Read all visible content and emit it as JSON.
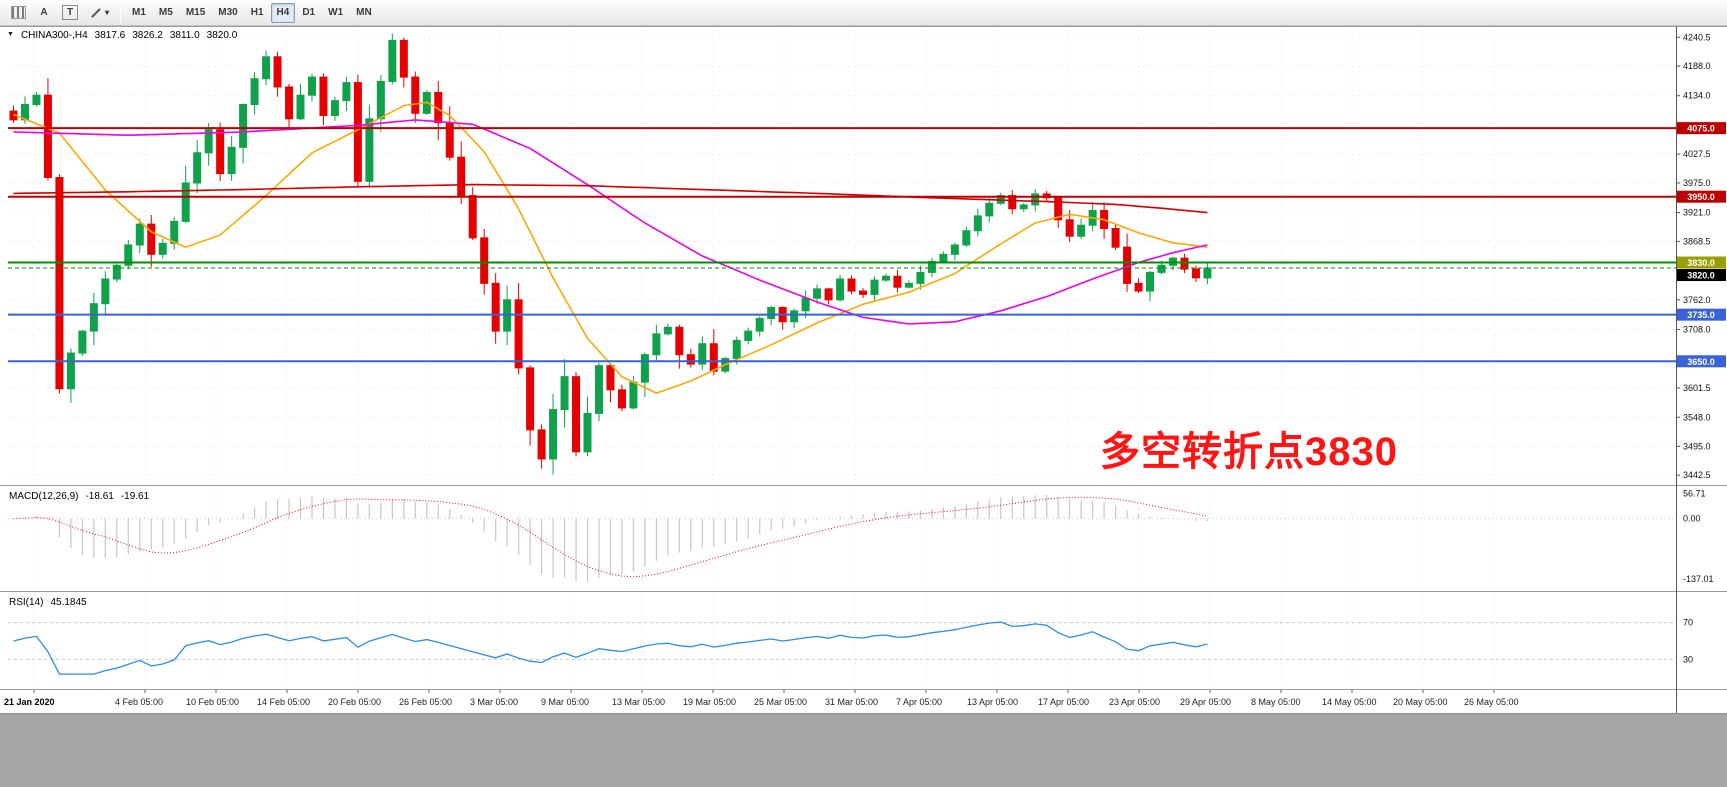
{
  "toolbar": {
    "tools": {
      "a": "A",
      "t": "T"
    },
    "timeframes": [
      "M1",
      "M5",
      "M15",
      "M30",
      "H1",
      "H4",
      "D1",
      "W1",
      "MN"
    ],
    "active_timeframe": "H4"
  },
  "chart_data": [
    {
      "type": "candlestick",
      "title": "CHINA300-,H4",
      "symbol": "CHINA300-",
      "timeframe": "H4",
      "open": "3817.6",
      "high": "3826.2",
      "low": "3811.0",
      "close": "3820.0",
      "y_range": [
        3430,
        4252
      ],
      "y_ticks": [
        4240.5,
        4188.0,
        4134.0,
        4027.5,
        3975.0,
        3921.0,
        3868.5,
        3762.0,
        3708.0,
        3601.5,
        3548.0,
        3495.0,
        3442.5
      ],
      "x_labels": [
        "21 Jan 2020",
        "4 Feb 05:00",
        "10 Feb 05:00",
        "14 Feb 05:00",
        "20 Feb 05:00",
        "26 Feb 05:00",
        "3 Mar 05:00",
        "9 Mar 05:00",
        "13 Mar 05:00",
        "19 Mar 05:00",
        "25 Mar 05:00",
        "31 Mar 05:00",
        "7 Apr 05:00",
        "13 Apr 05:00",
        "17 Apr 05:00",
        "23 Apr 05:00",
        "29 Apr 05:00",
        "8 May 05:00",
        "14 May 05:00",
        "20 May 05:00",
        "26 May 05:00"
      ],
      "closes": [
        4090,
        4118,
        4135,
        3985,
        3600,
        3665,
        3705,
        3755,
        3800,
        3825,
        3862,
        3900,
        3845,
        3865,
        3905,
        3975,
        4030,
        4072,
        3992,
        4040,
        4118,
        4165,
        4205,
        4150,
        4092,
        4135,
        4168,
        4098,
        4125,
        4158,
        3978,
        4092,
        4160,
        4235,
        4168,
        4102,
        4140,
        4085,
        4022,
        3952,
        3875,
        3792,
        3705,
        3762,
        3638,
        3525,
        3472,
        3562,
        3622,
        3485,
        3555,
        3642,
        3598,
        3565,
        3612,
        3662,
        3700,
        3712,
        3662,
        3645,
        3682,
        3632,
        3655,
        3688,
        3705,
        3728,
        3748,
        3722,
        3742,
        3765,
        3782,
        3762,
        3800,
        3778,
        3772,
        3798,
        3805,
        3785,
        3792,
        3812,
        3832,
        3845,
        3862,
        3888,
        3915,
        3938,
        3952,
        3928,
        3935,
        3955,
        3948,
        3908,
        3878,
        3898,
        3925,
        3892,
        3858,
        3792,
        3778,
        3812,
        3825,
        3838,
        3818,
        3802,
        3820
      ],
      "up_color": "#0fa24b",
      "down_color": "#e60000",
      "hlines": [
        {
          "price": 4075.0,
          "line_color": "#c00000",
          "badge_bg": "#c00000",
          "badge_fg": "#ffffff"
        },
        {
          "price": 3950.0,
          "line_color": "#c00000",
          "badge_bg": "#c00000",
          "badge_fg": "#ffffff"
        },
        {
          "price": 3830.0,
          "line_color": "#008f00",
          "badge_bg": "#97a000",
          "badge_fg": "#ffffff"
        },
        {
          "price": 3735.0,
          "line_color": "#3a62d8",
          "badge_bg": "#3a62d8",
          "badge_fg": "#ffffff"
        },
        {
          "price": 3650.0,
          "line_color": "#3a62d8",
          "badge_bg": "#3a62d8",
          "badge_fg": "#ffffff"
        }
      ],
      "bid": {
        "price": 3820.0,
        "line_color": "#008f00",
        "badge_bg": "#000000",
        "badge_fg": "#ffffff"
      },
      "moving_averages": [
        {
          "name": "fast",
          "color": "#ffa800",
          "waypoints": [
            [
              0,
              4100
            ],
            [
              4,
              4066
            ],
            [
              8,
              3962
            ],
            [
              12,
              3886
            ],
            [
              15,
              3858
            ],
            [
              18,
              3880
            ],
            [
              22,
              3952
            ],
            [
              26,
              4030
            ],
            [
              30,
              4072
            ],
            [
              34,
              4116
            ],
            [
              36,
              4122
            ],
            [
              38,
              4098
            ],
            [
              41,
              4032
            ],
            [
              44,
              3928
            ],
            [
              47,
              3802
            ],
            [
              50,
              3692
            ],
            [
              53,
              3622
            ],
            [
              56,
              3592
            ],
            [
              59,
              3614
            ],
            [
              62,
              3644
            ],
            [
              66,
              3680
            ],
            [
              70,
              3720
            ],
            [
              74,
              3754
            ],
            [
              78,
              3776
            ],
            [
              82,
              3810
            ],
            [
              86,
              3864
            ],
            [
              89,
              3902
            ],
            [
              92,
              3918
            ],
            [
              95,
              3908
            ],
            [
              98,
              3884
            ],
            [
              101,
              3866
            ],
            [
              104,
              3858
            ]
          ]
        },
        {
          "name": "medium",
          "color": "#f000e8",
          "waypoints": [
            [
              0,
              4068
            ],
            [
              10,
              4062
            ],
            [
              20,
              4068
            ],
            [
              30,
              4080
            ],
            [
              35,
              4090
            ],
            [
              40,
              4082
            ],
            [
              45,
              4038
            ],
            [
              50,
              3972
            ],
            [
              55,
              3902
            ],
            [
              60,
              3842
            ],
            [
              65,
              3798
            ],
            [
              70,
              3758
            ],
            [
              74,
              3730
            ],
            [
              78,
              3718
            ],
            [
              82,
              3722
            ],
            [
              86,
              3742
            ],
            [
              90,
              3768
            ],
            [
              94,
              3800
            ],
            [
              98,
              3830
            ],
            [
              101,
              3848
            ],
            [
              104,
              3862
            ]
          ]
        },
        {
          "name": "slow",
          "color": "#d40000",
          "waypoints": [
            [
              0,
              3956
            ],
            [
              10,
              3959
            ],
            [
              20,
              3963
            ],
            [
              30,
              3968
            ],
            [
              40,
              3972
            ],
            [
              50,
              3970
            ],
            [
              60,
              3963
            ],
            [
              70,
              3956
            ],
            [
              80,
              3948
            ],
            [
              90,
              3941
            ],
            [
              96,
              3936
            ],
            [
              100,
              3929
            ],
            [
              104,
              3921
            ]
          ]
        }
      ],
      "annotation": {
        "text": "多空转折点3830",
        "color": "#ff1414"
      }
    },
    {
      "type": "macd",
      "label": "MACD(12,26,9)",
      "value_main": "-18.61",
      "value_signal": "-19.61",
      "params": [
        12,
        26,
        9
      ],
      "y_labels": [
        {
          "v": 56.71,
          "text": "56.71"
        },
        {
          "v": 0,
          "text": "0.00"
        },
        {
          "v": -137.01,
          "text": "-137.01"
        }
      ],
      "histogram_color": "#c6c6c6",
      "signal_color": "#ff0000"
    },
    {
      "type": "rsi",
      "label": "RSI(14)",
      "value": "45.1845",
      "period": 14,
      "levels": [
        {
          "v": 70,
          "text": "70"
        },
        {
          "v": 30,
          "text": "30"
        }
      ],
      "line_color": "#2a8fe8",
      "level_color": "#c8c8c8"
    }
  ]
}
